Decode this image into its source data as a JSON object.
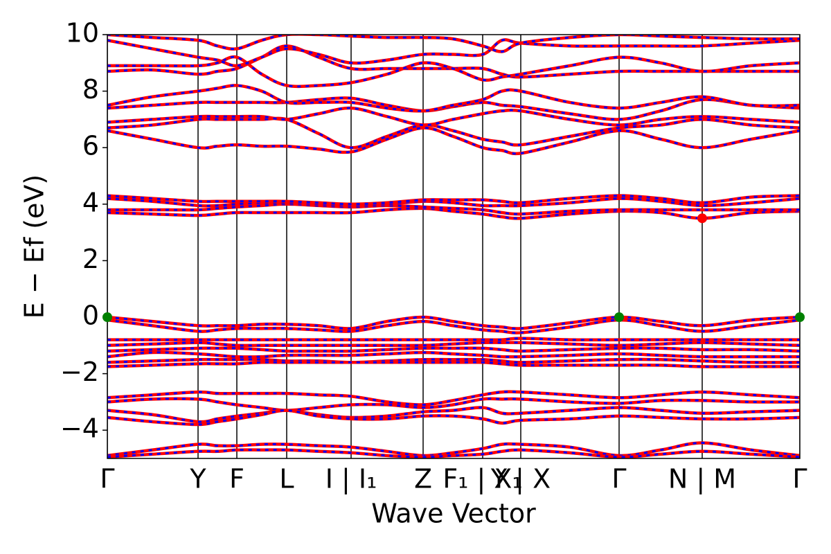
{
  "chart_data": {
    "type": "band_structure",
    "xlabel": "Wave Vector",
    "ylabel": "E − Ef (eV)",
    "xlim": [
      0,
      1000
    ],
    "ylim": [
      -5,
      10
    ],
    "yticks": [
      {
        "value": -4,
        "label": "−4"
      },
      {
        "value": -2,
        "label": "−2"
      },
      0,
      2,
      4,
      6,
      8,
      10
    ],
    "xticks": [
      {
        "value": 0,
        "label": "Γ"
      },
      {
        "value": 131,
        "label": "Y"
      },
      {
        "value": 187,
        "label": "F"
      },
      {
        "value": 259,
        "label": "L"
      },
      {
        "value": 352,
        "label": "I | I₁"
      },
      {
        "value": 456,
        "label": "Z"
      },
      {
        "value": 542,
        "label": "F₁ | X₁"
      },
      {
        "value": 597,
        "label": "Y | X"
      },
      {
        "value": 739,
        "label": "Γ"
      },
      {
        "value": 859,
        "label": "N | M"
      },
      {
        "value": 1000,
        "label": "Γ"
      }
    ],
    "dash_color": "#0000ff",
    "x": [
      0,
      65,
      131,
      159,
      187,
      223,
      259,
      305,
      352,
      404,
      456,
      499,
      542,
      570,
      597,
      668,
      739,
      799,
      859,
      930,
      1000
    ],
    "series": [
      {
        "color": "#ff0000",
        "values": [
          0,
          -0.15,
          -0.3,
          -0.3,
          -0.3,
          -0.25,
          -0.25,
          -0.3,
          -0.4,
          -0.15,
          0,
          -0.15,
          -0.3,
          -0.35,
          -0.4,
          -0.2,
          0,
          -0.15,
          -0.3,
          -0.1,
          0
        ]
      },
      {
        "color": "#ff0000",
        "values": [
          -0.1,
          -0.3,
          -0.5,
          -0.45,
          -0.4,
          -0.4,
          -0.4,
          -0.45,
          -0.5,
          -0.3,
          -0.15,
          -0.3,
          -0.45,
          -0.5,
          -0.55,
          -0.35,
          -0.1,
          -0.3,
          -0.5,
          -0.3,
          -0.1
        ]
      },
      {
        "color": "#ff0000",
        "values": [
          -0.8,
          -0.8,
          -0.8,
          -0.8,
          -0.8,
          -0.8,
          -0.8,
          -0.8,
          -0.8,
          -0.8,
          -0.8,
          -0.8,
          -0.8,
          -0.8,
          -0.75,
          -0.8,
          -0.8,
          -0.8,
          -0.8,
          -0.8,
          -0.8
        ]
      },
      {
        "color": "#ff0000",
        "values": [
          -1.0,
          -0.95,
          -0.9,
          -0.95,
          -1.0,
          -1.0,
          -1.0,
          -1.0,
          -1.0,
          -1.0,
          -1.0,
          -0.95,
          -0.9,
          -0.9,
          -0.9,
          -0.95,
          -1.0,
          -0.95,
          -0.9,
          -0.95,
          -1.0
        ]
      },
      {
        "color": "#ff0000",
        "values": [
          -1.2,
          -1.15,
          -1.1,
          -1.1,
          -1.1,
          -1.15,
          -1.2,
          -1.2,
          -1.2,
          -1.15,
          -1.1,
          -1.1,
          -1.1,
          -1.15,
          -1.2,
          -1.15,
          -1.1,
          -1.1,
          -1.15,
          -1.15,
          -1.2
        ]
      },
      {
        "color": "#ff0000",
        "values": [
          -1.4,
          -1.25,
          -1.3,
          -1.35,
          -1.4,
          -1.4,
          -1.35,
          -1.35,
          -1.35,
          -1.3,
          -1.25,
          -1.3,
          -1.35,
          -1.4,
          -1.4,
          -1.35,
          -1.3,
          -1.35,
          -1.4,
          -1.4,
          -1.4
        ]
      },
      {
        "color": "#ff0000",
        "values": [
          -1.6,
          -1.55,
          -1.5,
          -1.5,
          -1.5,
          -1.5,
          -1.55,
          -1.55,
          -1.6,
          -1.55,
          -1.5,
          -1.5,
          -1.5,
          -1.55,
          -1.6,
          -1.55,
          -1.5,
          -1.5,
          -1.55,
          -1.6,
          -1.6
        ]
      },
      {
        "color": "#ff0000",
        "values": [
          -1.75,
          -1.7,
          -1.65,
          -1.65,
          -1.65,
          -1.6,
          -1.6,
          -1.6,
          -1.6,
          -1.6,
          -1.6,
          -1.6,
          -1.6,
          -1.65,
          -1.7,
          -1.7,
          -1.7,
          -1.7,
          -1.75,
          -1.75,
          -1.75
        ]
      },
      {
        "color": "#ff0000",
        "values": [
          -2.85,
          -2.75,
          -2.65,
          -2.7,
          -2.7,
          -2.7,
          -2.7,
          -2.75,
          -2.8,
          -3.0,
          -3.1,
          -2.95,
          -2.75,
          -2.65,
          -2.65,
          -2.75,
          -2.85,
          -2.75,
          -2.65,
          -2.75,
          -2.85
        ]
      },
      {
        "color": "#ff0000",
        "values": [
          -3.0,
          -2.9,
          -2.9,
          -3.0,
          -3.1,
          -3.2,
          -3.3,
          -3.2,
          -3.1,
          -3.1,
          -3.2,
          -3.1,
          -2.9,
          -2.9,
          -2.9,
          -3.0,
          -3.05,
          -2.95,
          -2.95,
          -3.0,
          -3.0
        ]
      },
      {
        "color": "#ff0000",
        "values": [
          -3.3,
          -3.45,
          -3.7,
          -3.6,
          -3.5,
          -3.4,
          -3.3,
          -3.45,
          -3.55,
          -3.5,
          -3.35,
          -3.3,
          -3.2,
          -3.4,
          -3.4,
          -3.3,
          -3.2,
          -3.3,
          -3.4,
          -3.35,
          -3.3
        ]
      },
      {
        "color": "#ff0000",
        "values": [
          -3.55,
          -3.7,
          -3.8,
          -3.7,
          -3.6,
          -3.45,
          -3.3,
          -3.5,
          -3.6,
          -3.6,
          -3.5,
          -3.5,
          -3.6,
          -3.75,
          -3.65,
          -3.6,
          -3.5,
          -3.55,
          -3.6,
          -3.6,
          -3.55
        ]
      },
      {
        "color": "#ff0000",
        "values": [
          -4.9,
          -4.7,
          -4.5,
          -4.55,
          -4.55,
          -4.5,
          -4.5,
          -4.55,
          -4.6,
          -4.75,
          -4.9,
          -4.8,
          -4.65,
          -4.5,
          -4.5,
          -4.6,
          -4.9,
          -4.7,
          -4.45,
          -4.7,
          -4.9
        ]
      },
      {
        "color": "#ff0000",
        "values": [
          -4.95,
          -4.85,
          -4.75,
          -4.75,
          -4.7,
          -4.7,
          -4.7,
          -4.75,
          -4.8,
          -4.9,
          -4.95,
          -4.9,
          -4.85,
          -4.75,
          -4.7,
          -4.8,
          -4.95,
          -4.85,
          -4.75,
          -4.85,
          -4.95
        ]
      },
      {
        "color": "#ff0000",
        "values": [
          3.7,
          3.65,
          3.6,
          3.65,
          3.7,
          3.7,
          3.7,
          3.7,
          3.7,
          3.8,
          3.85,
          3.75,
          3.65,
          3.55,
          3.5,
          3.65,
          3.75,
          3.7,
          3.5,
          3.7,
          3.75
        ]
      },
      {
        "color": "#ff0000",
        "values": [
          3.8,
          3.8,
          3.8,
          3.85,
          3.9,
          3.95,
          4.0,
          3.95,
          3.9,
          3.95,
          3.9,
          3.85,
          3.8,
          3.7,
          3.65,
          3.75,
          3.8,
          3.8,
          3.8,
          3.8,
          3.8
        ]
      },
      {
        "color": "#ff0000",
        "values": [
          4.2,
          4.1,
          3.95,
          3.95,
          4.0,
          4.05,
          4.05,
          4.0,
          3.95,
          4.0,
          4.1,
          4.05,
          3.95,
          3.95,
          3.95,
          4.05,
          4.2,
          4.1,
          3.95,
          4.05,
          4.2
        ]
      },
      {
        "color": "#ff0000",
        "values": [
          4.3,
          4.2,
          4.1,
          4.1,
          4.1,
          4.1,
          4.1,
          4.05,
          4.0,
          4.05,
          4.15,
          4.15,
          4.15,
          4.1,
          4.05,
          4.2,
          4.3,
          4.2,
          4.05,
          4.25,
          4.3
        ]
      },
      {
        "color": "#ff0000",
        "values": [
          6.6,
          6.3,
          6.0,
          6.05,
          6.1,
          6.05,
          6.05,
          5.95,
          5.85,
          6.3,
          6.7,
          6.4,
          6.0,
          5.9,
          5.8,
          6.2,
          6.6,
          6.3,
          6.0,
          6.3,
          6.6
        ]
      },
      {
        "color": "#ff0000",
        "values": [
          6.7,
          6.8,
          7.0,
          7.0,
          7.0,
          7.0,
          7.0,
          6.5,
          6.0,
          6.4,
          6.8,
          6.6,
          6.3,
          6.2,
          6.1,
          6.4,
          6.7,
          6.8,
          7.0,
          6.8,
          6.7
        ]
      },
      {
        "color": "#ff0000",
        "values": [
          6.9,
          7.0,
          7.1,
          7.1,
          7.1,
          7.1,
          7.0,
          7.2,
          7.4,
          7.1,
          6.8,
          7.0,
          7.2,
          7.3,
          7.3,
          7.0,
          6.8,
          7.0,
          7.1,
          7.0,
          6.9
        ]
      },
      {
        "color": "#ff0000",
        "values": [
          7.4,
          7.5,
          7.6,
          7.6,
          7.6,
          7.6,
          7.6,
          7.7,
          7.75,
          7.5,
          7.3,
          7.45,
          7.6,
          7.5,
          7.45,
          7.2,
          7.0,
          7.3,
          7.7,
          7.5,
          7.4
        ]
      },
      {
        "color": "#ff0000",
        "values": [
          7.5,
          7.8,
          8.0,
          8.1,
          8.2,
          8.0,
          7.6,
          7.6,
          7.6,
          7.4,
          7.3,
          7.5,
          7.7,
          8.0,
          8.0,
          7.6,
          7.4,
          7.6,
          7.8,
          7.5,
          7.5
        ]
      },
      {
        "color": "#ff0000",
        "values": [
          8.7,
          8.75,
          8.6,
          8.7,
          8.8,
          9.2,
          9.6,
          9.2,
          8.8,
          8.8,
          8.8,
          8.8,
          8.8,
          8.6,
          8.5,
          8.6,
          8.7,
          8.7,
          8.7,
          8.7,
          8.7
        ]
      },
      {
        "color": "#ff0000",
        "values": [
          8.9,
          8.9,
          8.9,
          9.0,
          9.2,
          8.6,
          8.2,
          8.2,
          8.3,
          8.6,
          9.0,
          8.8,
          8.4,
          8.5,
          8.6,
          8.9,
          9.2,
          9.0,
          8.7,
          8.9,
          9.0
        ]
      },
      {
        "color": "#ff0000",
        "values": [
          9.8,
          9.5,
          9.2,
          9.1,
          8.9,
          9.2,
          9.5,
          9.3,
          9.0,
          9.1,
          9.3,
          9.3,
          9.3,
          9.8,
          9.7,
          9.6,
          9.6,
          9.6,
          9.6,
          9.7,
          9.8
        ]
      },
      {
        "color": "#ff0000",
        "values": [
          10,
          9.9,
          9.8,
          9.6,
          9.5,
          9.8,
          10,
          10,
          9.95,
          9.9,
          9.9,
          9.85,
          9.6,
          9.4,
          9.7,
          9.9,
          10,
          9.95,
          9.9,
          9.85,
          9.85
        ]
      }
    ],
    "points": [
      {
        "x": 0,
        "y": 0,
        "color": "#008000"
      },
      {
        "x": 739,
        "y": 0,
        "color": "#008000"
      },
      {
        "x": 1000,
        "y": 0,
        "color": "#008000"
      },
      {
        "x": 859,
        "y": 3.5,
        "color": "#ff0000"
      }
    ]
  }
}
